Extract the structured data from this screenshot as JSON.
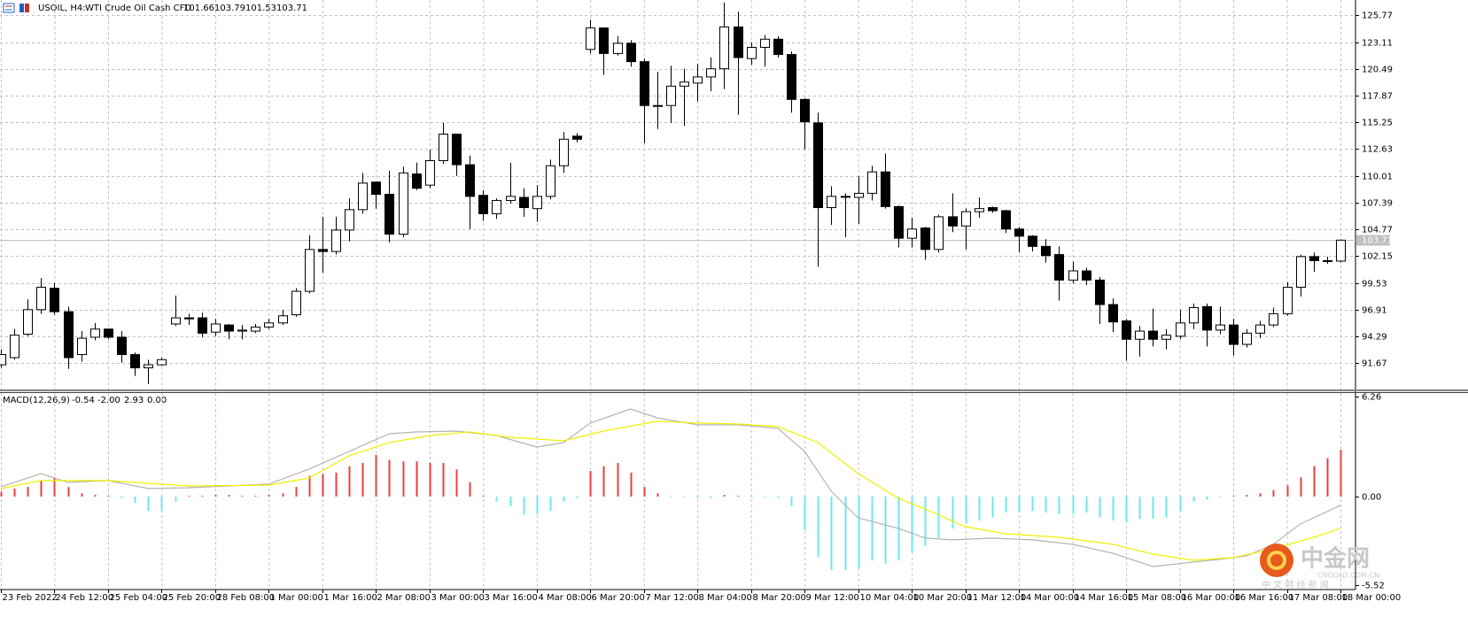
{
  "chart_data": [
    {
      "type": "candlestick",
      "symbol": "USOIL, H4:",
      "description": "WTI Crude Oil Cash CFD",
      "open": [
        91.5,
        92.2,
        94.5,
        96.9,
        99.0,
        96.7,
        92.5,
        94.2,
        95.0,
        94.2,
        92.5,
        91.2,
        91.5,
        95.5,
        96.1,
        96.1,
        94.7,
        95.4,
        94.8,
        94.8,
        95.2,
        95.6,
        96.4,
        98.7,
        102.8,
        102.6,
        104.7,
        106.7,
        109.4,
        108.2,
        104.3,
        110.2,
        109.1,
        111.5,
        114.1,
        111.1,
        108.1,
        106.3,
        107.6,
        107.9,
        106.8,
        108.0,
        111.0,
        113.9,
        122.4,
        124.5,
        122.0,
        123.0,
        121.2,
        116.9,
        116.9,
        118.8,
        119.1,
        119.7,
        120.5,
        124.6,
        121.5,
        122.6,
        123.4,
        121.9,
        117.5,
        115.2,
        106.9,
        108.0,
        107.9,
        108.3,
        110.4,
        107.0,
        103.9,
        104.9,
        102.8,
        106.0,
        105.1,
        106.5,
        106.9,
        106.6,
        104.8,
        104.1,
        103.1,
        102.3,
        99.8,
        100.7,
        99.8,
        97.4,
        95.8,
        94.0,
        94.8,
        94.0,
        94.3,
        95.6,
        97.2,
        94.9,
        95.4,
        93.5,
        94.6,
        95.4,
        96.5,
        99.1,
        102.1,
        101.7,
        101.66
      ],
      "high": [
        93.0,
        95.0,
        97.9,
        100.0,
        99.5,
        97.2,
        94.8,
        95.6,
        95.0,
        94.8,
        92.7,
        92.0,
        92.2,
        98.3,
        96.5,
        96.6,
        96.0,
        95.5,
        95.4,
        95.5,
        96.0,
        96.9,
        99.0,
        104.2,
        106.0,
        106.0,
        107.8,
        110.3,
        109.4,
        110.5,
        110.9,
        111.3,
        112.6,
        115.2,
        114.1,
        112.0,
        108.6,
        107.8,
        111.3,
        108.8,
        109.1,
        111.6,
        114.3,
        114.2,
        125.3,
        124.5,
        123.7,
        123.3,
        121.5,
        120.2,
        120.8,
        120.5,
        121.0,
        121.6,
        127.0,
        126.1,
        123.1,
        123.8,
        123.7,
        122.2,
        117.6,
        116.2,
        109.0,
        108.3,
        110.0,
        111.0,
        112.2,
        107.1,
        105.9,
        105.0,
        106.2,
        108.3,
        106.8,
        107.9,
        107.0,
        106.7,
        105.0,
        104.2,
        103.8,
        103.1,
        101.6,
        101.0,
        100.1,
        98.0,
        96.0,
        95.3,
        97.0,
        95.0,
        96.9,
        97.5,
        97.5,
        97.2,
        96.0,
        95.0,
        95.8,
        97.1,
        99.6,
        102.3,
        102.5,
        102.1,
        103.79
      ],
      "low": [
        91.2,
        92.0,
        94.3,
        96.5,
        96.4,
        91.1,
        91.8,
        93.9,
        94.0,
        91.7,
        90.4,
        89.6,
        91.4,
        95.3,
        95.4,
        94.2,
        94.3,
        94.0,
        94.0,
        94.6,
        95.0,
        95.4,
        96.2,
        98.5,
        100.5,
        102.3,
        103.6,
        106.3,
        106.8,
        103.5,
        104.0,
        108.6,
        108.8,
        111.2,
        110.0,
        104.8,
        105.6,
        105.8,
        107.3,
        106.0,
        105.5,
        107.7,
        110.3,
        113.3,
        122.0,
        119.9,
        121.8,
        120.7,
        113.2,
        114.6,
        115.2,
        114.9,
        117.3,
        118.3,
        118.5,
        116.0,
        120.9,
        120.7,
        121.6,
        116.2,
        112.6,
        101.1,
        105.2,
        104.0,
        105.3,
        107.6,
        106.8,
        103.0,
        103.0,
        101.8,
        102.5,
        104.5,
        102.8,
        105.9,
        106.4,
        104.4,
        102.5,
        102.6,
        101.5,
        97.8,
        99.5,
        99.3,
        95.5,
        94.7,
        91.9,
        92.3,
        93.3,
        93.0,
        94.0,
        95.0,
        93.3,
        94.5,
        92.4,
        93.2,
        94.1,
        95.2,
        96.3,
        98.2,
        100.6,
        101.4,
        101.53
      ],
      "close": [
        92.5,
        94.4,
        96.9,
        99.1,
        96.7,
        92.2,
        94.1,
        95.0,
        94.2,
        92.5,
        91.2,
        91.5,
        92.0,
        96.1,
        96.0,
        94.6,
        95.5,
        94.8,
        94.9,
        95.2,
        95.6,
        96.3,
        98.7,
        102.8,
        102.6,
        104.7,
        106.7,
        109.3,
        108.2,
        104.3,
        110.3,
        108.8,
        111.5,
        114.1,
        111.1,
        108.0,
        106.3,
        107.6,
        108.0,
        106.9,
        108.0,
        111.0,
        113.6,
        113.6,
        124.5,
        122.0,
        123.0,
        121.2,
        116.9,
        116.9,
        118.8,
        119.2,
        119.7,
        120.5,
        124.6,
        121.6,
        122.6,
        123.4,
        121.9,
        117.5,
        115.3,
        106.9,
        108.0,
        108.0,
        108.3,
        110.4,
        107.0,
        103.9,
        104.8,
        102.8,
        106.0,
        105.1,
        106.5,
        106.8,
        106.6,
        104.8,
        104.1,
        103.1,
        102.2,
        99.8,
        100.7,
        99.8,
        97.4,
        95.7,
        94.0,
        94.8,
        94.0,
        94.4,
        95.6,
        97.1,
        94.9,
        95.4,
        93.5,
        94.6,
        95.4,
        96.5,
        99.1,
        102.1,
        101.7,
        101.7,
        103.71
      ],
      "ylim": [
        89.08,
        127.24
      ],
      "yticks": [
        125.77,
        123.11,
        120.49,
        117.87,
        115.25,
        112.63,
        110.01,
        107.39,
        104.77,
        102.15,
        99.53,
        96.91,
        94.29,
        91.67
      ],
      "grid": true,
      "up_color": "#ffffff",
      "down_color": "#000000",
      "wick_color": "#000000",
      "price_line_color": "#c0c0c0"
    },
    {
      "type": "macd",
      "title": "MACD(12,26,9)",
      "readout": [
        "-0.54",
        "-2.00",
        "2.93",
        "0.00"
      ],
      "histogram": [
        0.3,
        0.5,
        0.6,
        1.0,
        1.2,
        0.6,
        0.2,
        0.1,
        0.05,
        -0.1,
        -0.4,
        -0.9,
        -0.9,
        -0.3,
        0.05,
        0.05,
        0.1,
        0.1,
        0.05,
        0.05,
        0.1,
        0.2,
        0.6,
        1.3,
        1.4,
        1.5,
        1.9,
        2.1,
        2.6,
        2.3,
        2.2,
        2.2,
        2.1,
        2.1,
        1.7,
        0.9,
        0.05,
        -0.3,
        -0.6,
        -1.1,
        -1.1,
        -0.9,
        -0.3,
        -0.1,
        1.6,
        1.9,
        2.1,
        1.5,
        0.6,
        0.2,
        -0.05,
        -0.05,
        -0.1,
        -0.1,
        0.1,
        0.05,
        -0.05,
        -0.05,
        -0.1,
        -0.6,
        -2.1,
        -3.8,
        -4.6,
        -4.6,
        -4.5,
        -4.0,
        -4.2,
        -4.0,
        -3.5,
        -3.1,
        -2.6,
        -2.0,
        -1.7,
        -1.5,
        -1.3,
        -1.0,
        -1.0,
        -0.9,
        -1.0,
        -1.1,
        -1.1,
        -1.0,
        -1.3,
        -1.5,
        -1.6,
        -1.4,
        -1.4,
        -1.3,
        -0.9,
        -0.3,
        -0.2,
        -0.05,
        0.05,
        0.1,
        0.2,
        0.4,
        0.7,
        1.2,
        1.9,
        2.4,
        2.93
      ],
      "positive_color": "#e8413c",
      "negative_color": "#6ee6ee",
      "series": [
        {
          "color": "#b4b4b4",
          "x": [
            0,
            3,
            5,
            8,
            11,
            14,
            20,
            23,
            26,
            29,
            31,
            34,
            37,
            40,
            42,
            44,
            47,
            49,
            52,
            55,
            58,
            60,
            62,
            64,
            67,
            69,
            71,
            74,
            77,
            80,
            83,
            86,
            89,
            91,
            93,
            95,
            97,
            99,
            100
          ],
          "values": [
            0.61,
            1.44,
            0.89,
            1.0,
            0.5,
            0.55,
            0.78,
            1.72,
            2.83,
            3.93,
            4.04,
            4.1,
            3.82,
            3.1,
            3.38,
            4.6,
            5.48,
            4.93,
            4.49,
            4.49,
            4.27,
            2.83,
            0.33,
            -1.33,
            -1.99,
            -2.6,
            -2.71,
            -2.6,
            -2.71,
            -2.99,
            -3.55,
            -4.38,
            -4.1,
            -3.93,
            -3.71,
            -2.99,
            -1.72,
            -0.94,
            -0.54
          ]
        },
        {
          "color": "#f0f000",
          "x": [
            0,
            3,
            8,
            14,
            20,
            23,
            26,
            29,
            32,
            35,
            38,
            42,
            45,
            49,
            52,
            55,
            58,
            61,
            64,
            67,
            69,
            72,
            75,
            79,
            83,
            86,
            89,
            92,
            95,
            98,
            100
          ],
          "values": [
            0.5,
            1.0,
            1.0,
            0.66,
            0.72,
            1.16,
            2.55,
            3.38,
            3.82,
            4.04,
            3.71,
            3.49,
            4.1,
            4.71,
            4.6,
            4.54,
            4.38,
            3.38,
            1.44,
            -0.11,
            -0.78,
            -1.88,
            -2.33,
            -2.55,
            -2.99,
            -3.6,
            -3.99,
            -3.82,
            -3.27,
            -2.55,
            -2.0
          ]
        }
      ],
      "ylim": [
        -5.82,
        6.48
      ],
      "yticks": [
        6.26,
        {
          "value": 0,
          "label": "0.00"
        },
        -5.52
      ],
      "xticks": [
        {
          "value": 0,
          "label": "23 Feb 2022"
        },
        {
          "value": 4,
          "label": "24 Feb 12:00"
        },
        {
          "value": 8,
          "label": "25 Feb 04:00"
        },
        {
          "value": 12,
          "label": "25 Feb 20:00"
        },
        {
          "value": 16,
          "label": "28 Feb 08:00"
        },
        {
          "value": 20,
          "label": "1 Mar 00:00"
        },
        {
          "value": 24,
          "label": "1 Mar 16:00"
        },
        {
          "value": 28,
          "label": "2 Mar 08:00"
        },
        {
          "value": 32,
          "label": "3 Mar 00:00"
        },
        {
          "value": 36,
          "label": "3 Mar 16:00"
        },
        {
          "value": 40,
          "label": "4 Mar 08:00"
        },
        {
          "value": 44,
          "label": "6 Mar 20:00"
        },
        {
          "value": 48,
          "label": "7 Mar 12:00"
        },
        {
          "value": 52,
          "label": "8 Mar 04:00"
        },
        {
          "value": 56,
          "label": "8 Mar 20:00"
        },
        {
          "value": 60,
          "label": "9 Mar 12:00"
        },
        {
          "value": 64,
          "label": "10 Mar 04:00"
        },
        {
          "value": 68,
          "label": "10 Mar 20:00"
        },
        {
          "value": 72,
          "label": "11 Mar 12:00"
        },
        {
          "value": 76,
          "label": "14 Mar 00:00"
        },
        {
          "value": 80,
          "label": "14 Mar 16:00"
        },
        {
          "value": 84,
          "label": "15 Mar 08:00"
        },
        {
          "value": 88,
          "label": "16 Mar 00:00"
        },
        {
          "value": 92,
          "label": "16 Mar 16:00"
        },
        {
          "value": 96,
          "label": "17 Mar 08:00"
        },
        {
          "value": 100,
          "label": "18 Mar 00:00"
        }
      ],
      "grid": true
    }
  ],
  "watermark": {
    "brand": "中金网",
    "tagline": "中 文 财 经 新 闻",
    "domain": "CNGOLD.COM.CN"
  }
}
